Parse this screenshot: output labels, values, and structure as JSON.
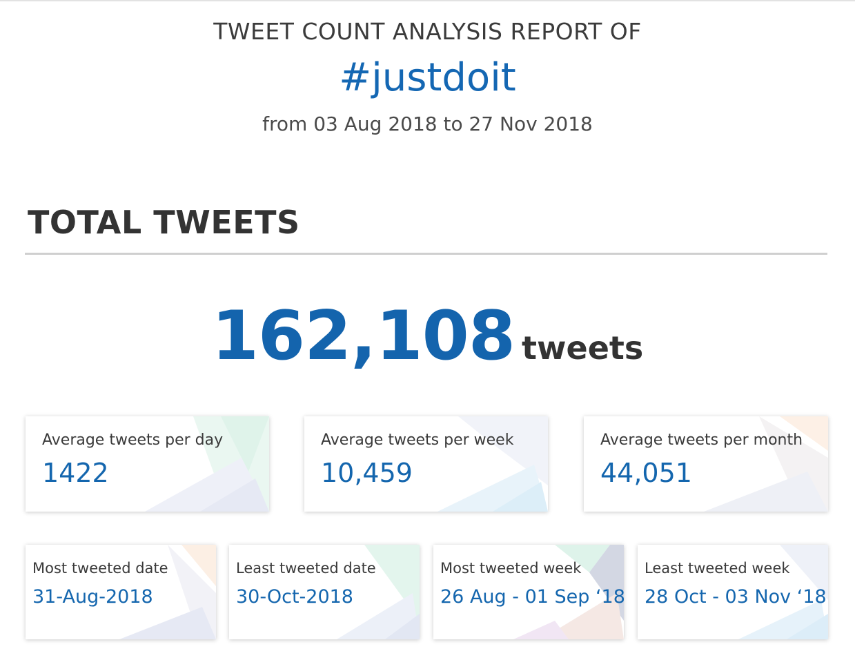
{
  "report": {
    "title": "TWEET COUNT ANALYSIS REPORT OF",
    "hashtag": "#justdoit",
    "date_range": "from 03 Aug 2018 to 27 Nov 2018"
  },
  "total": {
    "heading": "TOTAL TWEETS",
    "count": "162,108",
    "unit": "tweets"
  },
  "averages": [
    {
      "label": "Average tweets per day",
      "value": "1422"
    },
    {
      "label": "Average tweets per week",
      "value": "10,459"
    },
    {
      "label": "Average tweets per month",
      "value": "44,051"
    }
  ],
  "extremes": [
    {
      "label": "Most tweeted date",
      "value": "31-Aug-2018"
    },
    {
      "label": "Least tweeted date",
      "value": "30-Oct-2018"
    },
    {
      "label": "Most tweeted week",
      "value": "26 Aug - 01 Sep ‘18"
    },
    {
      "label": "Least tweeted week",
      "value": "28 Oct - 03 Nov ‘18"
    }
  ],
  "colors": {
    "accent_blue": "#1466ae",
    "heading_dark": "#333333"
  }
}
